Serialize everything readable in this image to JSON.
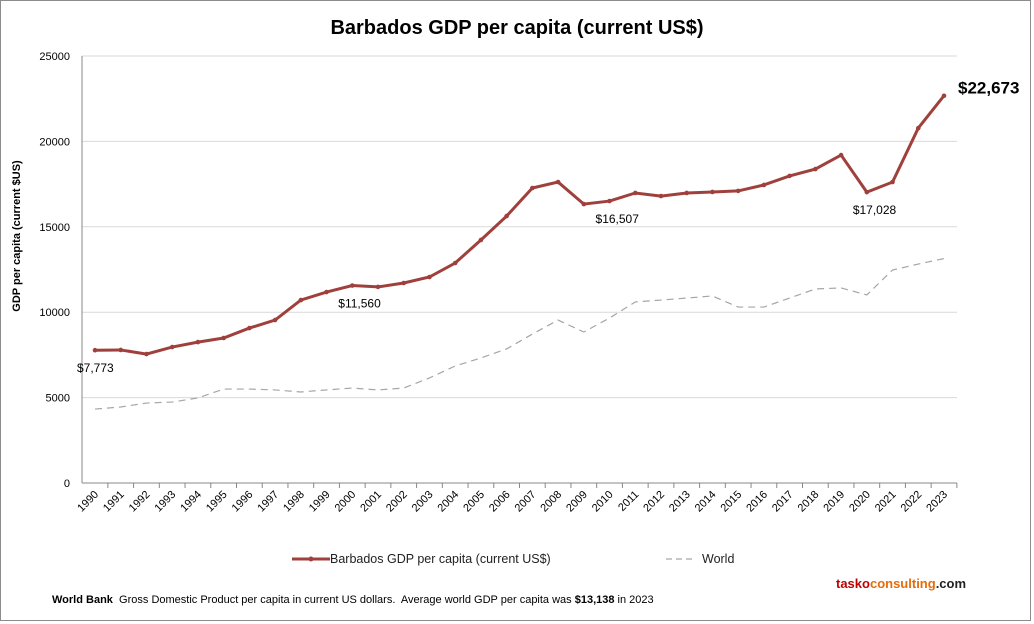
{
  "chart_data": {
    "type": "line",
    "title": "Barbados GDP per capita (current US$)",
    "ylabel": "GDP per capita (current $US)",
    "xlabel": "",
    "ylim": [
      0,
      25000
    ],
    "yticks": [
      0,
      5000,
      10000,
      15000,
      20000,
      25000
    ],
    "grid": true,
    "legend": "bottom",
    "x": [
      1990,
      1991,
      1992,
      1993,
      1994,
      1995,
      1996,
      1997,
      1998,
      1999,
      2000,
      2001,
      2002,
      2003,
      2004,
      2005,
      2006,
      2007,
      2008,
      2009,
      2010,
      2011,
      2012,
      2013,
      2014,
      2015,
      2016,
      2017,
      2018,
      2019,
      2020,
      2021,
      2022,
      2023
    ],
    "series": [
      {
        "name": "Barbados GDP per capita (current US$)",
        "color": "#a0403c",
        "style": "solid",
        "values": [
          7773,
          7790,
          7550,
          7960,
          8250,
          8490,
          9070,
          9540,
          10710,
          11180,
          11560,
          11480,
          11710,
          12060,
          12880,
          14230,
          15630,
          17270,
          17620,
          16330,
          16507,
          16980,
          16800,
          16980,
          17040,
          17100,
          17450,
          17980,
          18380,
          19200,
          17028,
          17620,
          20780,
          22673
        ]
      },
      {
        "name": "World",
        "color": "#a6a6a6",
        "style": "dashed",
        "values": [
          4330,
          4450,
          4680,
          4740,
          4980,
          5500,
          5500,
          5450,
          5330,
          5450,
          5560,
          5450,
          5560,
          6150,
          6850,
          7320,
          7850,
          8720,
          9540,
          8840,
          9660,
          10600,
          10710,
          10830,
          10950,
          10300,
          10300,
          10830,
          11360,
          11420,
          11010,
          12470,
          12820,
          13138
        ]
      }
    ],
    "annotations": [
      {
        "year": 1990,
        "text": "$7,773"
      },
      {
        "year": 2000,
        "text": "$11,560"
      },
      {
        "year": 2010,
        "text": "$16,507"
      },
      {
        "year": 2020,
        "text": "$17,028"
      },
      {
        "year": 2023,
        "text": "$22,673",
        "bold": true
      }
    ]
  },
  "footer": {
    "source": "World Bank",
    "text_before": "Gross Domestic Product per capita in current US dollars.  Average world GDP per capita was ",
    "highlight": "$13,138",
    "text_after": " in 2023"
  },
  "brand": {
    "part1": "tasko",
    "part2": "consulting",
    "part3": ".com",
    "color1": "#c00000",
    "color2": "#e46c0a",
    "color3": "#222222"
  }
}
